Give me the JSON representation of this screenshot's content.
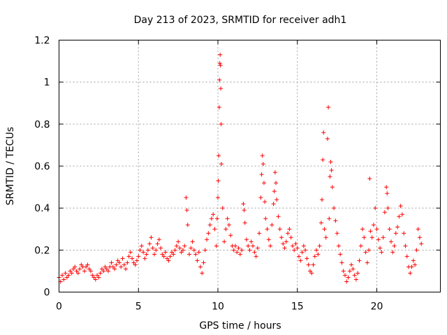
{
  "chart_data": {
    "type": "scatter",
    "title": "Day 213 of 2023, SRMTID for receiver adh1",
    "xlabel": "GPS time / hours",
    "ylabel": "SRMTID / TECUs",
    "xlim": [
      0,
      24
    ],
    "ylim": [
      0,
      1.2
    ],
    "grid": true,
    "xticks": [
      0,
      5,
      10,
      15,
      20
    ],
    "xtick_labels": [
      "0",
      "5",
      "10",
      "15",
      "20"
    ],
    "yticks": [
      0,
      0.2,
      0.4,
      0.6,
      0.8,
      1.0,
      1.2
    ],
    "ytick_labels": [
      "0",
      "0.2",
      "0.4",
      "0.6",
      "0.8",
      "1",
      "1.2"
    ],
    "marker": "plus",
    "color": "#ff0000",
    "series": [
      {
        "name": "adh1",
        "points": [
          [
            0.0,
            0.07
          ],
          [
            0.1,
            0.05
          ],
          [
            0.2,
            0.08
          ],
          [
            0.3,
            0.06
          ],
          [
            0.4,
            0.09
          ],
          [
            0.5,
            0.07
          ],
          [
            0.6,
            0.08
          ],
          [
            0.7,
            0.1
          ],
          [
            0.8,
            0.09
          ],
          [
            0.9,
            0.11
          ],
          [
            1.0,
            0.12
          ],
          [
            1.1,
            0.1
          ],
          [
            1.2,
            0.09
          ],
          [
            1.3,
            0.11
          ],
          [
            1.4,
            0.13
          ],
          [
            1.5,
            0.12
          ],
          [
            1.6,
            0.1
          ],
          [
            1.7,
            0.12
          ],
          [
            1.8,
            0.13
          ],
          [
            1.9,
            0.11
          ],
          [
            2.0,
            0.1
          ],
          [
            2.1,
            0.08
          ],
          [
            2.2,
            0.07
          ],
          [
            2.3,
            0.06
          ],
          [
            2.4,
            0.08
          ],
          [
            2.5,
            0.07
          ],
          [
            2.6,
            0.09
          ],
          [
            2.7,
            0.11
          ],
          [
            2.8,
            0.1
          ],
          [
            2.9,
            0.12
          ],
          [
            3.0,
            0.11
          ],
          [
            3.1,
            0.1
          ],
          [
            3.2,
            0.12
          ],
          [
            3.3,
            0.14
          ],
          [
            3.4,
            0.12
          ],
          [
            3.5,
            0.11
          ],
          [
            3.6,
            0.13
          ],
          [
            3.7,
            0.15
          ],
          [
            3.8,
            0.14
          ],
          [
            3.9,
            0.12
          ],
          [
            4.0,
            0.16
          ],
          [
            4.1,
            0.13
          ],
          [
            4.2,
            0.11
          ],
          [
            4.3,
            0.14
          ],
          [
            4.4,
            0.17
          ],
          [
            4.5,
            0.19
          ],
          [
            4.6,
            0.16
          ],
          [
            4.7,
            0.14
          ],
          [
            4.8,
            0.13
          ],
          [
            4.9,
            0.15
          ],
          [
            5.0,
            0.17
          ],
          [
            5.1,
            0.2
          ],
          [
            5.2,
            0.22
          ],
          [
            5.3,
            0.19
          ],
          [
            5.4,
            0.16
          ],
          [
            5.5,
            0.18
          ],
          [
            5.6,
            0.2
          ],
          [
            5.7,
            0.23
          ],
          [
            5.8,
            0.26
          ],
          [
            5.9,
            0.21
          ],
          [
            6.0,
            0.18
          ],
          [
            6.1,
            0.2
          ],
          [
            6.2,
            0.23
          ],
          [
            6.3,
            0.25
          ],
          [
            6.4,
            0.21
          ],
          [
            6.5,
            0.18
          ],
          [
            6.6,
            0.17
          ],
          [
            6.7,
            0.19
          ],
          [
            6.8,
            0.16
          ],
          [
            6.9,
            0.15
          ],
          [
            7.0,
            0.17
          ],
          [
            7.1,
            0.19
          ],
          [
            7.2,
            0.18
          ],
          [
            7.3,
            0.2
          ],
          [
            7.4,
            0.22
          ],
          [
            7.5,
            0.24
          ],
          [
            7.6,
            0.21
          ],
          [
            7.7,
            0.19
          ],
          [
            7.8,
            0.2
          ],
          [
            7.9,
            0.22
          ],
          [
            8.0,
            0.45
          ],
          [
            8.05,
            0.39
          ],
          [
            8.1,
            0.32
          ],
          [
            8.2,
            0.18
          ],
          [
            8.3,
            0.21
          ],
          [
            8.4,
            0.24
          ],
          [
            8.5,
            0.2
          ],
          [
            8.6,
            0.18
          ],
          [
            8.7,
            0.15
          ],
          [
            8.8,
            0.19
          ],
          [
            8.9,
            0.12
          ],
          [
            9.0,
            0.09
          ],
          [
            9.1,
            0.14
          ],
          [
            9.2,
            0.2
          ],
          [
            9.3,
            0.25
          ],
          [
            9.4,
            0.28
          ],
          [
            9.5,
            0.32
          ],
          [
            9.6,
            0.35
          ],
          [
            9.7,
            0.37
          ],
          [
            9.8,
            0.3
          ],
          [
            9.9,
            0.22
          ],
          [
            9.95,
            0.35
          ],
          [
            10.0,
            0.45
          ],
          [
            10.02,
            0.53
          ],
          [
            10.05,
            0.65
          ],
          [
            10.08,
            0.88
          ],
          [
            10.1,
            1.01
          ],
          [
            10.12,
            1.09
          ],
          [
            10.14,
            1.13
          ],
          [
            10.16,
            1.08
          ],
          [
            10.18,
            0.97
          ],
          [
            10.2,
            0.8
          ],
          [
            10.22,
            0.61
          ],
          [
            10.3,
            0.4
          ],
          [
            10.4,
            0.24
          ],
          [
            10.5,
            0.3
          ],
          [
            10.6,
            0.35
          ],
          [
            10.7,
            0.32
          ],
          [
            10.8,
            0.27
          ],
          [
            10.9,
            0.22
          ],
          [
            11.0,
            0.2
          ],
          [
            11.1,
            0.22
          ],
          [
            11.2,
            0.19
          ],
          [
            11.3,
            0.21
          ],
          [
            11.4,
            0.18
          ],
          [
            11.5,
            0.2
          ],
          [
            11.6,
            0.42
          ],
          [
            11.65,
            0.39
          ],
          [
            11.7,
            0.33
          ],
          [
            11.8,
            0.25
          ],
          [
            11.9,
            0.22
          ],
          [
            12.0,
            0.2
          ],
          [
            12.1,
            0.24
          ],
          [
            12.2,
            0.22
          ],
          [
            12.3,
            0.19
          ],
          [
            12.4,
            0.17
          ],
          [
            12.5,
            0.21
          ],
          [
            12.6,
            0.28
          ],
          [
            12.7,
            0.45
          ],
          [
            12.75,
            0.56
          ],
          [
            12.8,
            0.65
          ],
          [
            12.85,
            0.61
          ],
          [
            12.9,
            0.52
          ],
          [
            12.95,
            0.43
          ],
          [
            13.0,
            0.35
          ],
          [
            13.1,
            0.3
          ],
          [
            13.2,
            0.25
          ],
          [
            13.3,
            0.22
          ],
          [
            13.4,
            0.32
          ],
          [
            13.5,
            0.42
          ],
          [
            13.55,
            0.48
          ],
          [
            13.6,
            0.57
          ],
          [
            13.65,
            0.52
          ],
          [
            13.7,
            0.44
          ],
          [
            13.8,
            0.36
          ],
          [
            13.9,
            0.3
          ],
          [
            14.0,
            0.26
          ],
          [
            14.1,
            0.23
          ],
          [
            14.2,
            0.21
          ],
          [
            14.3,
            0.24
          ],
          [
            14.4,
            0.28
          ],
          [
            14.5,
            0.3
          ],
          [
            14.6,
            0.26
          ],
          [
            14.7,
            0.22
          ],
          [
            14.8,
            0.2
          ],
          [
            14.9,
            0.23
          ],
          [
            15.0,
            0.21
          ],
          [
            15.1,
            0.17
          ],
          [
            15.2,
            0.15
          ],
          [
            15.3,
            0.19
          ],
          [
            15.4,
            0.22
          ],
          [
            15.5,
            0.2
          ],
          [
            15.6,
            0.16
          ],
          [
            15.7,
            0.13
          ],
          [
            15.8,
            0.1
          ],
          [
            15.9,
            0.09
          ],
          [
            16.0,
            0.13
          ],
          [
            16.1,
            0.17
          ],
          [
            16.2,
            0.2
          ],
          [
            16.3,
            0.18
          ],
          [
            16.4,
            0.22
          ],
          [
            16.5,
            0.33
          ],
          [
            16.55,
            0.44
          ],
          [
            16.6,
            0.63
          ],
          [
            16.65,
            0.76
          ],
          [
            16.7,
            0.3
          ],
          [
            16.8,
            0.26
          ],
          [
            16.9,
            0.73
          ],
          [
            16.95,
            0.88
          ],
          [
            17.0,
            0.35
          ],
          [
            17.05,
            0.55
          ],
          [
            17.1,
            0.62
          ],
          [
            17.15,
            0.58
          ],
          [
            17.2,
            0.5
          ],
          [
            17.3,
            0.4
          ],
          [
            17.4,
            0.34
          ],
          [
            17.5,
            0.28
          ],
          [
            17.6,
            0.22
          ],
          [
            17.7,
            0.18
          ],
          [
            17.8,
            0.14
          ],
          [
            17.9,
            0.1
          ],
          [
            18.0,
            0.08
          ],
          [
            18.1,
            0.05
          ],
          [
            18.2,
            0.07
          ],
          [
            18.3,
            0.1
          ],
          [
            18.4,
            0.13
          ],
          [
            18.5,
            0.11
          ],
          [
            18.6,
            0.08
          ],
          [
            18.7,
            0.06
          ],
          [
            18.8,
            0.09
          ],
          [
            18.9,
            0.15
          ],
          [
            19.0,
            0.22
          ],
          [
            19.1,
            0.3
          ],
          [
            19.2,
            0.26
          ],
          [
            19.3,
            0.19
          ],
          [
            19.4,
            0.14
          ],
          [
            19.5,
            0.2
          ],
          [
            19.55,
            0.54
          ],
          [
            19.6,
            0.29
          ],
          [
            19.7,
            0.26
          ],
          [
            19.8,
            0.32
          ],
          [
            19.9,
            0.4
          ],
          [
            20.0,
            0.3
          ],
          [
            20.1,
            0.25
          ],
          [
            20.2,
            0.21
          ],
          [
            20.3,
            0.19
          ],
          [
            20.4,
            0.26
          ],
          [
            20.5,
            0.38
          ],
          [
            20.6,
            0.5
          ],
          [
            20.65,
            0.47
          ],
          [
            20.7,
            0.4
          ],
          [
            20.8,
            0.3
          ],
          [
            20.9,
            0.24
          ],
          [
            21.0,
            0.19
          ],
          [
            21.1,
            0.22
          ],
          [
            21.2,
            0.28
          ],
          [
            21.3,
            0.31
          ],
          [
            21.4,
            0.36
          ],
          [
            21.5,
            0.41
          ],
          [
            21.6,
            0.37
          ],
          [
            21.7,
            0.28
          ],
          [
            21.8,
            0.22
          ],
          [
            21.9,
            0.17
          ],
          [
            22.0,
            0.12
          ],
          [
            22.1,
            0.09
          ],
          [
            22.2,
            0.12
          ],
          [
            22.3,
            0.15
          ],
          [
            22.4,
            0.13
          ],
          [
            22.5,
            0.2
          ],
          [
            22.6,
            0.3
          ],
          [
            22.7,
            0.26
          ],
          [
            22.8,
            0.23
          ]
        ]
      }
    ]
  }
}
